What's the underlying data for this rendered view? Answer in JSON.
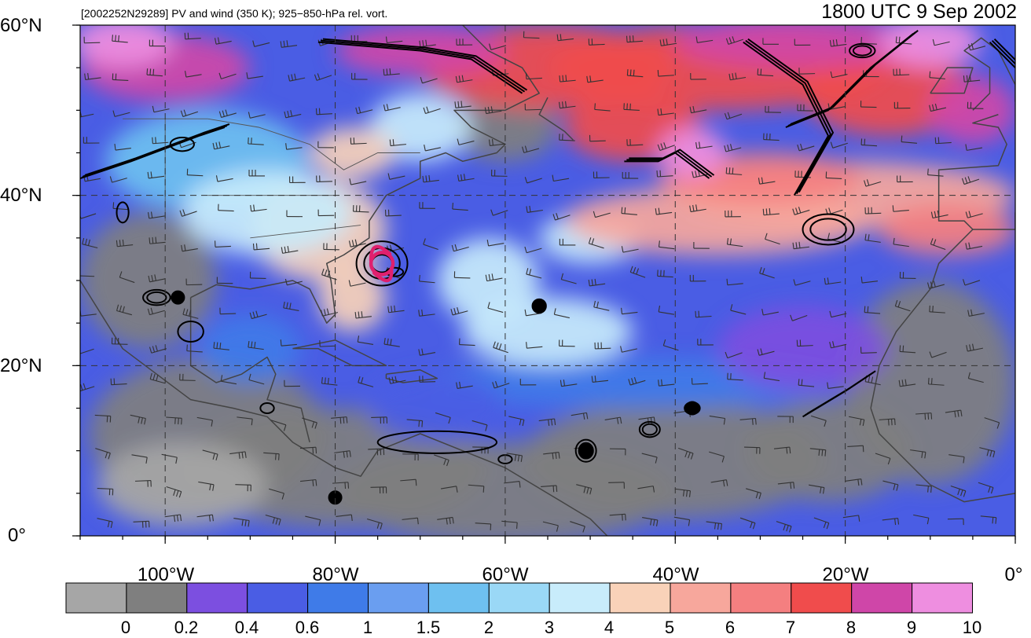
{
  "header": {
    "subtitle": "[2002252N29289] PV and wind (350 K); 925−850-hPa rel. vort.",
    "title": "1800 UTC 9 Sep 2002"
  },
  "map": {
    "lat_labels": [
      "60°N",
      "40°N",
      "20°N",
      "0°"
    ],
    "lon_labels": [
      "100°W",
      "80°W",
      "60°W",
      "40°W",
      "20°W",
      "0°"
    ],
    "lat_values": [
      60,
      40,
      20,
      0
    ],
    "lon_values": [
      -100,
      -80,
      -60,
      -40,
      -20,
      0
    ],
    "lon_range": [
      -110,
      0
    ],
    "lat_range": [
      0,
      60
    ],
    "grid": "dashed"
  },
  "colorbar": {
    "labels": [
      "0",
      "0.2",
      "0.4",
      "0.6",
      "1",
      "1.5",
      "2",
      "3",
      "4",
      "5",
      "6",
      "7",
      "8",
      "9",
      "10"
    ],
    "colors": [
      "#a6a6a6",
      "#7f7f7f",
      "#7c4fe0",
      "#4a5de4",
      "#3f7be8",
      "#6a9ef0",
      "#6ec0f0",
      "#9ad8f6",
      "#c8ecfb",
      "#f9d2b9",
      "#f7a79c",
      "#f47f80",
      "#f04c4c",
      "#cf46a8",
      "#ee8ee0"
    ]
  },
  "storm": {
    "color": "#e0206e"
  }
}
